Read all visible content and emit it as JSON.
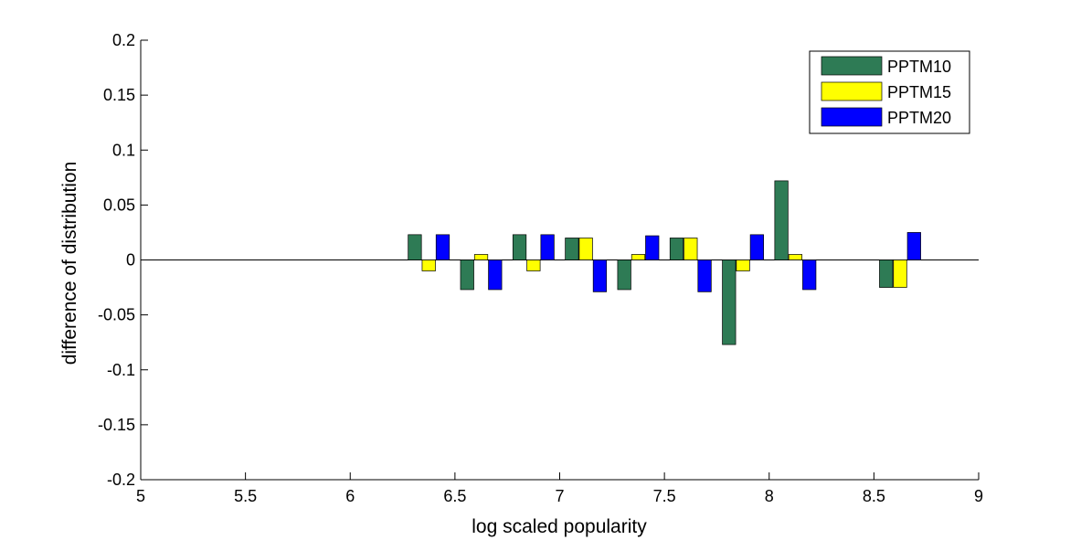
{
  "chart_data": {
    "type": "bar",
    "xlabel": "log scaled popularity",
    "ylabel": "difference of distribution",
    "xlim": [
      5,
      9
    ],
    "ylim": [
      -0.2,
      0.2
    ],
    "xticks": [
      "5",
      "5.5",
      "6",
      "6.5",
      "7",
      "7.5",
      "8",
      "8.5",
      "9"
    ],
    "yticks": [
      "-0.2",
      "-0.15",
      "-0.1",
      "-0.05",
      "0",
      "0.05",
      "0.1",
      "0.15",
      "0.2"
    ],
    "grid": false,
    "legend_position": "top-right",
    "x": [
      6.375,
      6.625,
      6.875,
      7.125,
      7.375,
      7.625,
      7.875,
      8.125,
      8.625
    ],
    "series": [
      {
        "name": "PPTM10",
        "color": "#2e7b55",
        "values": [
          0.023,
          -0.027,
          0.023,
          0.02,
          -0.027,
          0.02,
          -0.077,
          0.072,
          -0.025
        ]
      },
      {
        "name": "PPTM15",
        "color": "#ffff00",
        "values": [
          -0.01,
          0.005,
          -0.01,
          0.02,
          0.005,
          0.02,
          -0.01,
          0.005,
          -0.025
        ]
      },
      {
        "name": "PPTM20",
        "color": "#0000ff",
        "values": [
          0.023,
          -0.027,
          0.023,
          -0.029,
          0.022,
          -0.029,
          0.023,
          -0.027,
          0.025
        ]
      }
    ]
  }
}
